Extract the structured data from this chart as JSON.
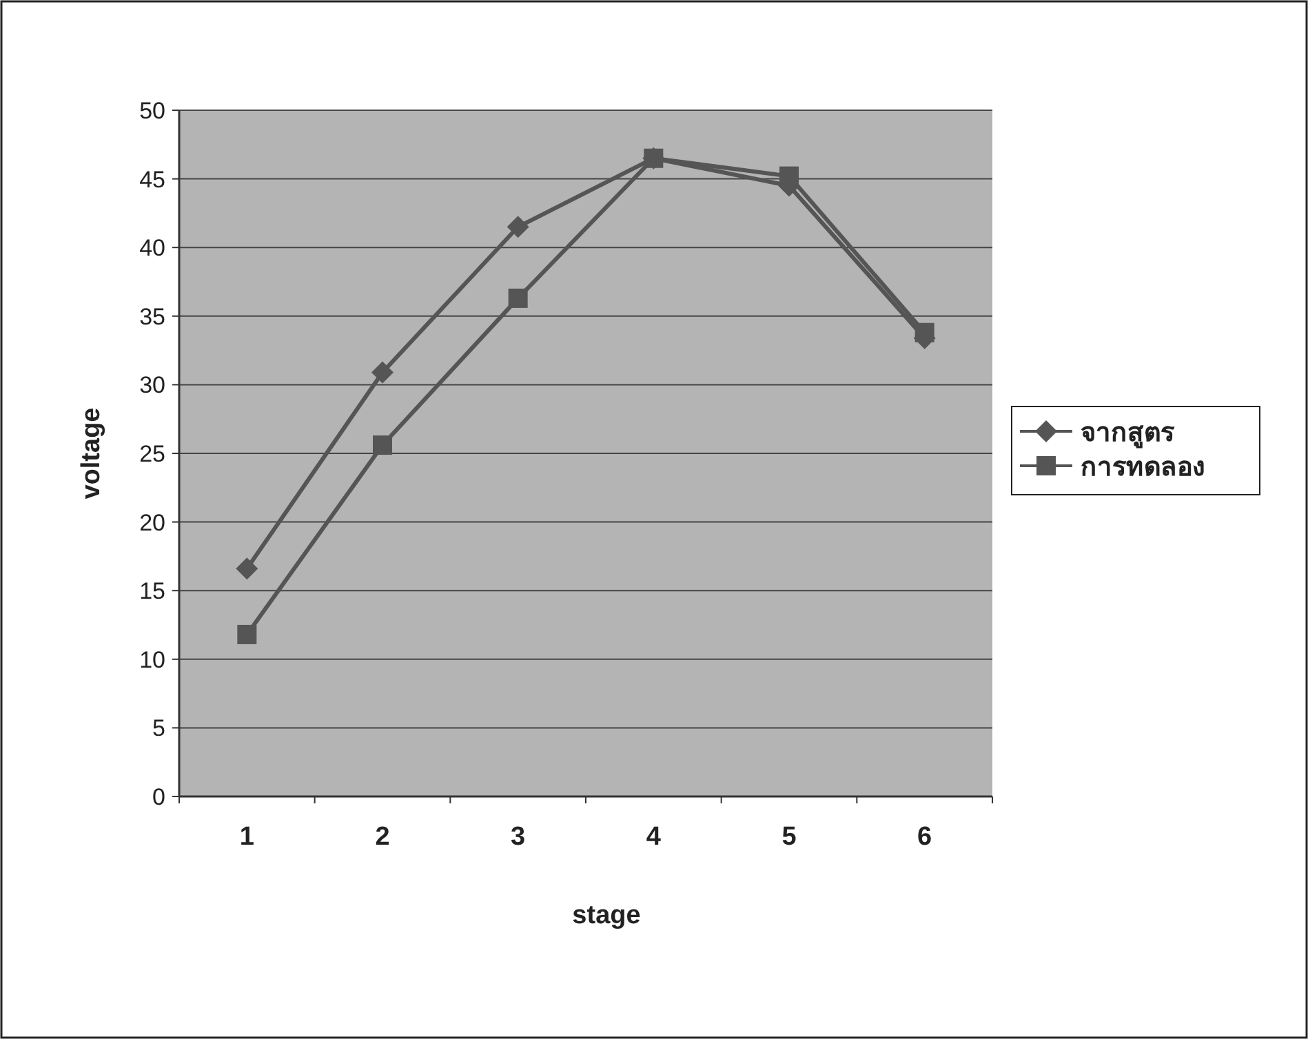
{
  "chart_data": {
    "type": "line",
    "xlabel": "stage",
    "ylabel": "voltage",
    "categories": [
      "1",
      "2",
      "3",
      "4",
      "5",
      "6"
    ],
    "series": [
      {
        "name": "จากสูตร",
        "color": "#555555",
        "marker": "diamond",
        "values": [
          16.6,
          30.9,
          41.5,
          46.5,
          44.5,
          33.4
        ]
      },
      {
        "name": "การทดลอง",
        "color": "#555555",
        "marker": "square",
        "values": [
          11.8,
          25.6,
          36.3,
          46.5,
          45.2,
          33.8
        ]
      }
    ],
    "ylim": [
      0,
      50
    ],
    "yticks": [
      0,
      5,
      10,
      15,
      20,
      25,
      30,
      35,
      40,
      45,
      50
    ],
    "grid": "y",
    "legend": "right"
  }
}
